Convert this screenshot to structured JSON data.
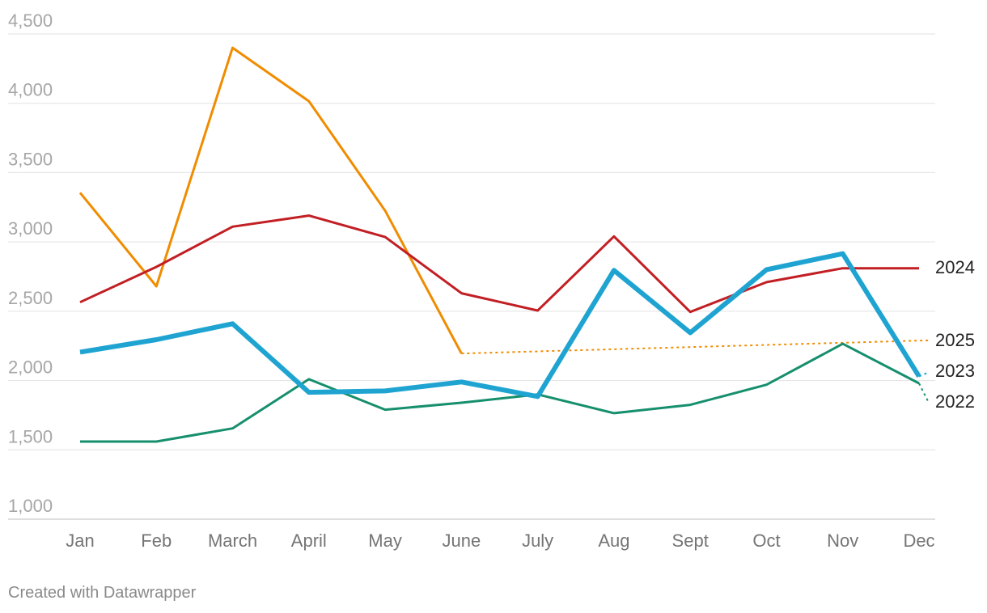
{
  "chart_data": {
    "type": "line",
    "categories": [
      "Jan",
      "Feb",
      "March",
      "April",
      "May",
      "June",
      "July",
      "Aug",
      "Sept",
      "Oct",
      "Nov",
      "Dec"
    ],
    "ylim": [
      1000,
      4500
    ],
    "yticks": [
      1000,
      1500,
      2000,
      2500,
      3000,
      3500,
      4000,
      4500
    ],
    "ytick_labels": [
      "1,000",
      "1,500",
      "2,000",
      "2,500",
      "3,000",
      "3,500",
      "4,000",
      "4,500"
    ],
    "grid": true,
    "series": [
      {
        "name": "2022",
        "color": "#168f6d",
        "width": 3,
        "values": [
          1560,
          1560,
          1655,
          2010,
          1790,
          1840,
          1900,
          1765,
          1825,
          1970,
          2265,
          1980
        ],
        "projection": {
          "from_index": 11,
          "end_value": 1840
        }
      },
      {
        "name": "2023",
        "color": "#1fa4d2",
        "width": 6,
        "values": [
          2205,
          2295,
          2410,
          1915,
          1925,
          1990,
          1885,
          2795,
          2345,
          2800,
          2915,
          2030
        ],
        "projection": {
          "from_index": 11,
          "end_value": 2060
        }
      },
      {
        "name": "2024",
        "color": "#c21f24",
        "width": 3,
        "values": [
          2565,
          2820,
          3110,
          3190,
          3035,
          2630,
          2505,
          3040,
          2495,
          2710,
          2810,
          2810
        ]
      },
      {
        "name": "2025",
        "color": "#f08c00",
        "width": 3,
        "values": [
          3355,
          2680,
          4400,
          4015,
          3225,
          2195,
          null,
          null,
          null,
          null,
          null,
          null
        ],
        "projection": {
          "from_index": 5,
          "end_value": 2290
        }
      }
    ]
  },
  "footer": {
    "credit": "Created with Datawrapper"
  }
}
